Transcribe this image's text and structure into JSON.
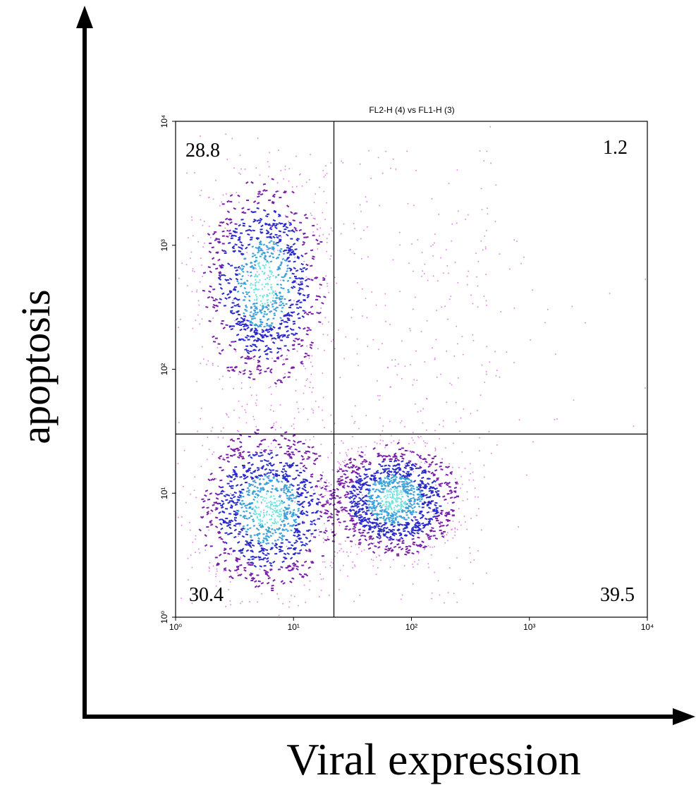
{
  "chart_data": {
    "type": "scatter",
    "title": "FL2-H (4) vs FL1-H (3)",
    "xlabel": "Viral expression",
    "ylabel": "apoptosis",
    "x_scale": "log",
    "y_scale": "log",
    "xlim": [
      1,
      10000
    ],
    "ylim": [
      1,
      10000
    ],
    "x_ticks": [
      "10⁰",
      "10¹",
      "10²",
      "10³",
      "10⁴"
    ],
    "y_ticks": [
      "10⁰",
      "10¹",
      "10²",
      "10³",
      "10⁴"
    ],
    "grid": false,
    "quadrant_gates": {
      "x": 22,
      "y": 30
    },
    "quadrants": [
      {
        "position": "upper-left",
        "value": "28.8"
      },
      {
        "position": "upper-right",
        "value": "1.2"
      },
      {
        "position": "lower-left",
        "value": "30.4"
      },
      {
        "position": "lower-right",
        "value": "39.5"
      }
    ],
    "populations": [
      {
        "center": [
          5.5,
          500
        ],
        "share": 28.8
      },
      {
        "center": [
          6.0,
          7.5
        ],
        "share": 30.4
      },
      {
        "center": [
          70,
          9.0
        ],
        "share": 39.5
      },
      {
        "center": [
          150,
          200
        ],
        "share": 1.2
      }
    ],
    "colors": {
      "sparse": "#e07ce8",
      "low": "#7a1fa8",
      "mid": "#2a2ac8",
      "high": "#3aa0d8",
      "peak": "#6fe3e0",
      "gate": "#000000"
    }
  }
}
